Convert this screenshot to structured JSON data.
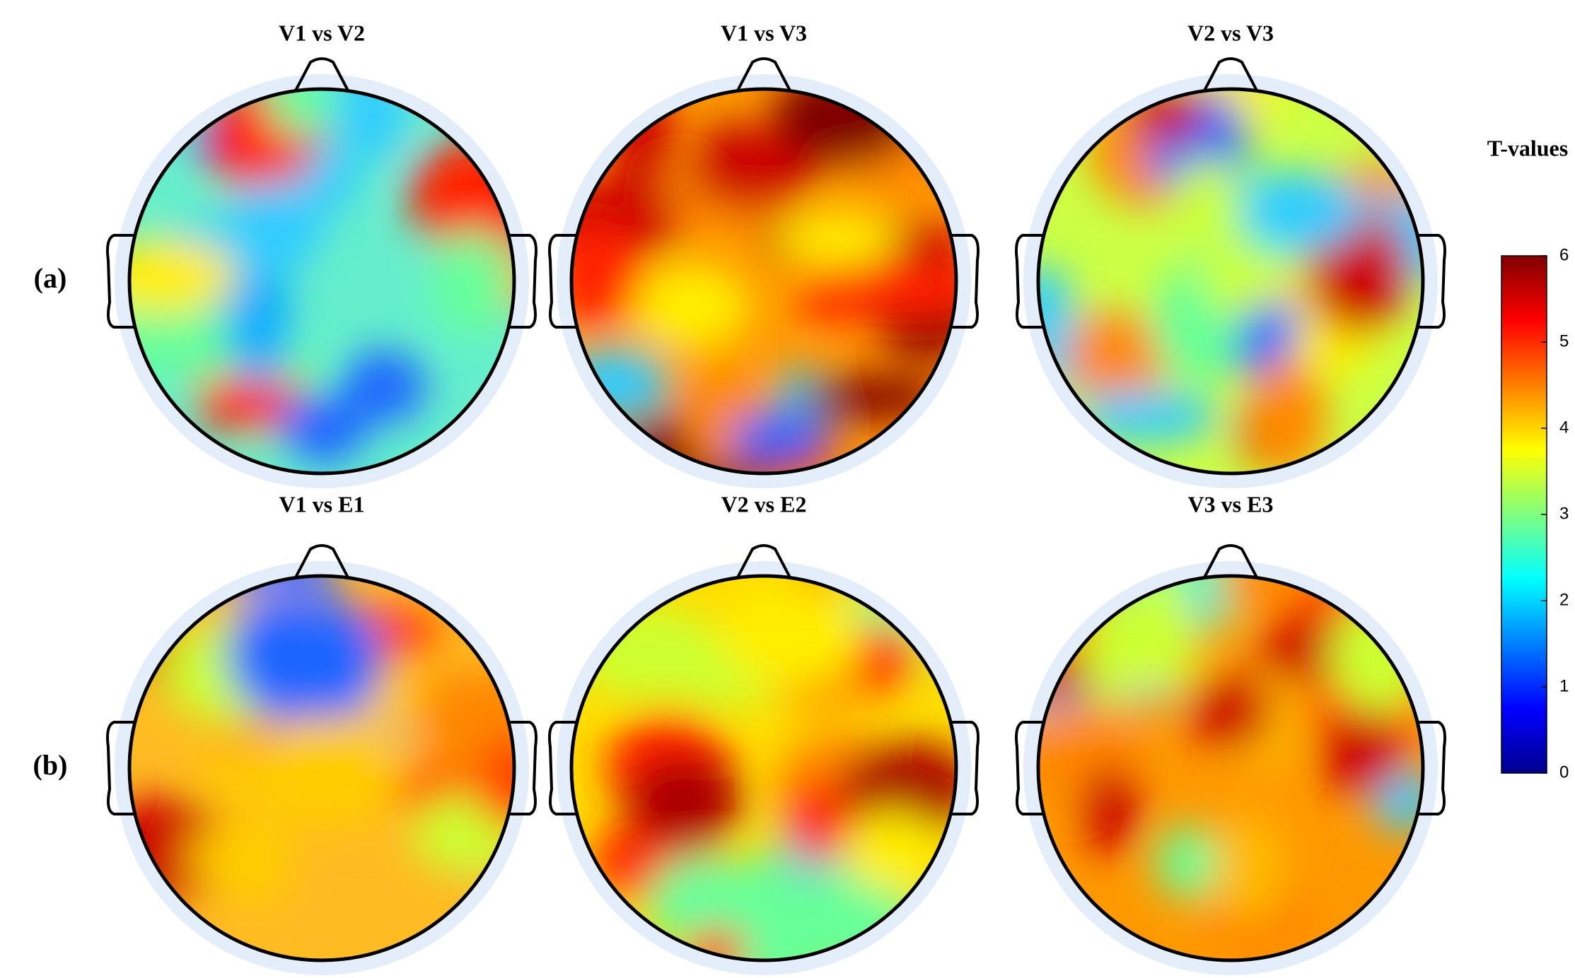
{
  "chart_data": {
    "type": "topomap",
    "panels": [
      {
        "title": "V1 vs V2"
      },
      {
        "title": "V1 vs V3"
      },
      {
        "title": "V2 vs V3"
      },
      {
        "title": "V1 vs E1"
      },
      {
        "title": "V2 vs E2"
      },
      {
        "title": "V3 vs E3"
      }
    ],
    "row_labels": [
      "(a)",
      "(b)"
    ],
    "colorbar": {
      "title": "T-values",
      "clim": [
        0,
        6
      ],
      "ticks": [
        0,
        1,
        2,
        3,
        4,
        5,
        6
      ]
    }
  }
}
